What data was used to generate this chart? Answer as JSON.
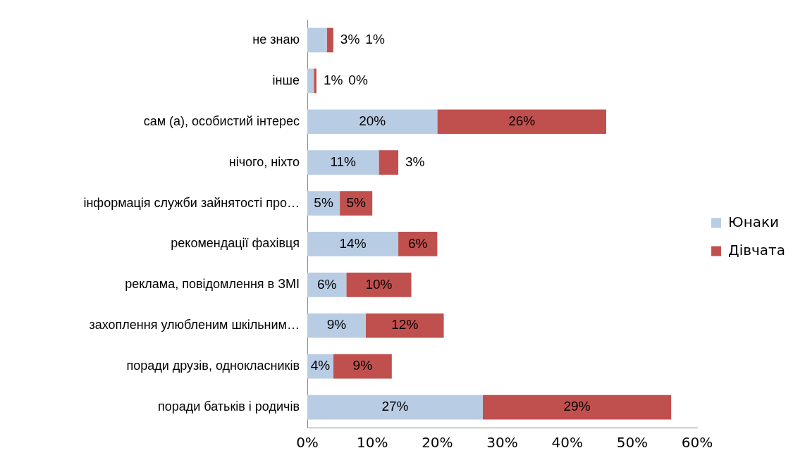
{
  "chart_data": {
    "type": "bar",
    "orientation": "horizontal",
    "stacked": true,
    "categories": [
      "не знаю",
      "інше",
      "сам (а), особистий інтерес",
      "нічого, ніхто",
      "інформація служби зайнятості про…",
      "рекомендації фахівця",
      "реклама, повідомлення в ЗМІ",
      "захоплення улюбленим шкільним…",
      "поради друзів, однокласників",
      "поради батьків і родичів"
    ],
    "series": [
      {
        "name": "Юнаки",
        "color": "#b8cce4",
        "values": [
          3,
          1,
          20,
          11,
          5,
          14,
          6,
          9,
          4,
          27
        ],
        "value_labels": [
          "3%",
          "1%",
          "20%",
          "11%",
          "5%",
          "14%",
          "6%",
          "9%",
          "4%",
          "27%"
        ]
      },
      {
        "name": "Дівчата",
        "color": "#c0504d",
        "values": [
          1,
          0.4,
          26,
          3,
          5,
          6,
          10,
          12,
          9,
          29
        ],
        "value_labels": [
          "1%",
          "0%",
          "26%",
          "3%",
          "5%",
          "6%",
          "10%",
          "12%",
          "9%",
          "29%"
        ]
      }
    ],
    "xlim": [
      0,
      60
    ],
    "xticks": [
      {
        "value": 0,
        "label": "0%"
      },
      {
        "value": 10,
        "label": "10%"
      },
      {
        "value": 20,
        "label": "20%"
      },
      {
        "value": 30,
        "label": "30%"
      },
      {
        "value": 40,
        "label": "40%"
      },
      {
        "value": 50,
        "label": "50%"
      },
      {
        "value": 60,
        "label": "60%"
      }
    ],
    "grid": false,
    "legend": "right"
  }
}
